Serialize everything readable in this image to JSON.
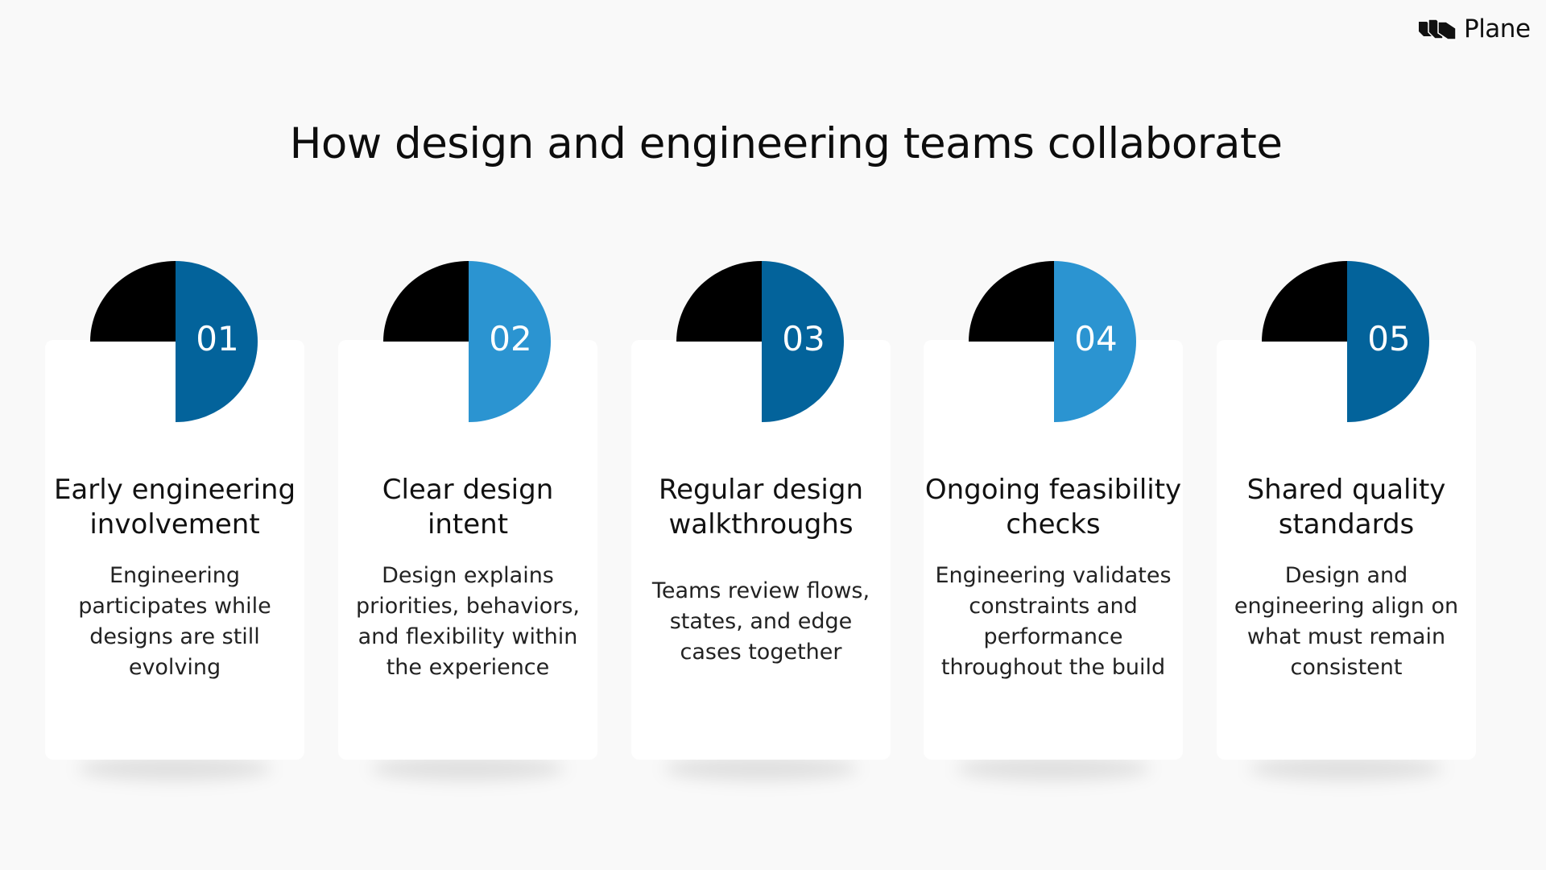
{
  "brand": {
    "name": "Plane",
    "icon": "plane-logo-icon"
  },
  "title": "How design and engineering teams collaborate",
  "colors": {
    "dark_blue": "#03639b",
    "light_blue": "#2b94d1",
    "black": "#000000",
    "background": "#f9f9f9"
  },
  "cards": [
    {
      "number": "01",
      "accent": "#03639b",
      "title": "Early engineering involvement",
      "body": "Engineering participates while designs are still evolving"
    },
    {
      "number": "02",
      "accent": "#2b94d1",
      "title": "Clear design intent",
      "body": "Design explains priorities, behaviors, and flexibility within the experience"
    },
    {
      "number": "03",
      "accent": "#03639b",
      "title": "Regular design walkthroughs",
      "body": "Teams review flows, states, and edge cases together"
    },
    {
      "number": "04",
      "accent": "#2b94d1",
      "title": "Ongoing feasibility checks",
      "body": "Engineering validates constraints and performance throughout the build"
    },
    {
      "number": "05",
      "accent": "#03639b",
      "title": "Shared quality standards",
      "body": "Design and engineering align on what must remain consistent"
    }
  ]
}
